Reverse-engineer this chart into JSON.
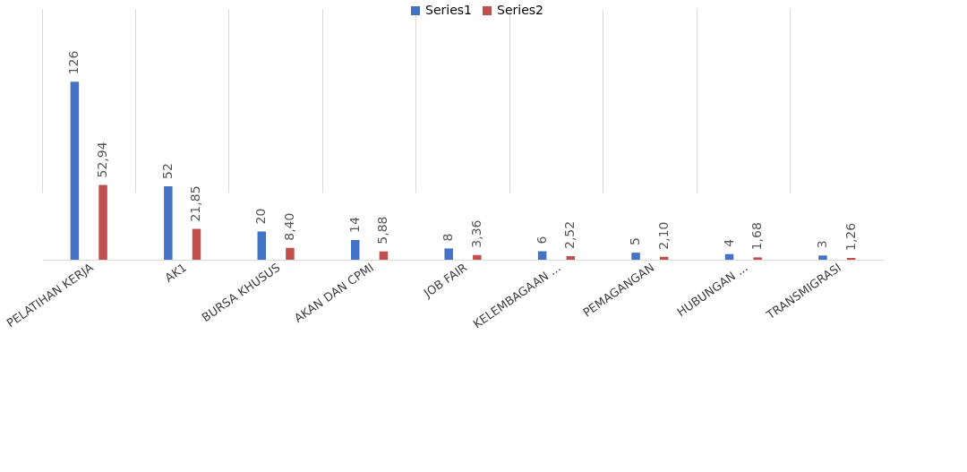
{
  "chart_data": {
    "type": "bar",
    "categories": [
      "PELATIHAN KERJA",
      "AK1",
      "BURSA KHUSUS",
      "AKAN DAN CPMI",
      "JOB FAIR",
      "KELEMBAGAAN ...",
      "PEMAGANGAN",
      "HUBUNGAN ...",
      "TRANSMIGRASI"
    ],
    "series": [
      {
        "name": "Series1",
        "color": "#4472c4",
        "values": [
          126,
          52,
          20,
          14,
          8,
          6,
          5,
          4,
          3
        ],
        "value_labels": [
          "126",
          "52",
          "20",
          "14",
          "8",
          "6",
          "5",
          "4",
          "3"
        ]
      },
      {
        "name": "Series2",
        "color": "#c0504d",
        "values": [
          52.94,
          21.85,
          8.4,
          5.88,
          3.36,
          2.52,
          2.1,
          1.68,
          1.26
        ],
        "value_labels": [
          "52,94",
          "21,85",
          "8,40",
          "5,88",
          "3,36",
          "2,52",
          "2,10",
          "1,68",
          "1,26"
        ]
      }
    ],
    "grid": "x",
    "legend": "top"
  }
}
